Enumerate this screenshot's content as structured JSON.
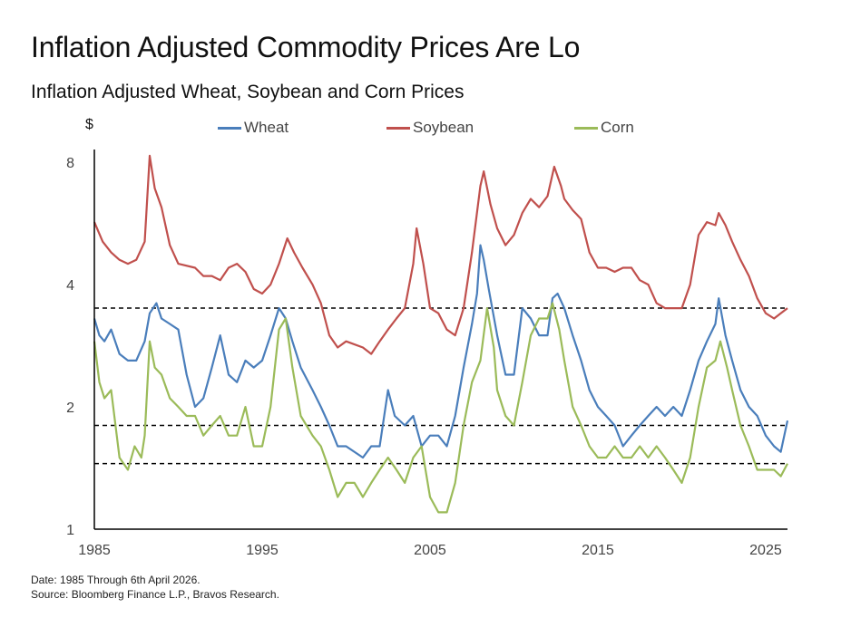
{
  "title": "Inflation Adjusted Commodity Prices Are Lo",
  "subtitle": "Inflation Adjusted Wheat, Soybean and Corn Prices",
  "y_unit": "$",
  "footnote": {
    "line1": "Date: 1985 Through 6th April 2026.",
    "line2": "Source: Bloomberg Finance L.P., Bravos Research."
  },
  "chart_data": {
    "type": "line",
    "title": "Inflation Adjusted Wheat, Soybean and Corn Prices",
    "xlabel": "",
    "ylabel": "$",
    "y_scale": "log",
    "ylim": [
      1,
      8.6
    ],
    "xlim": [
      1985.0,
      2026.3
    ],
    "x_ticks": [
      1985,
      1995,
      2005,
      2015,
      2025
    ],
    "x_tick_labels": [
      "1985",
      "1995",
      "2005",
      "2015",
      "2025"
    ],
    "y_ticks": [
      1,
      2,
      4,
      8
    ],
    "y_tick_labels": [
      "1",
      "2",
      "4",
      "8"
    ],
    "grid": false,
    "legend_position": "top",
    "reference_lines": [
      3.5,
      1.8,
      1.45
    ],
    "colors": {
      "Wheat": "#4a7ebb",
      "Soybean": "#c0504d",
      "Corn": "#9bbb59"
    },
    "series": [
      {
        "name": "Wheat",
        "x": [
          1985,
          1985.3,
          1985.6,
          1986,
          1986.5,
          1987,
          1987.5,
          1988,
          1988.3,
          1988.7,
          1989,
          1989.5,
          1990,
          1990.5,
          1991,
          1991.5,
          1992,
          1992.5,
          1993,
          1993.5,
          1994,
          1994.5,
          1995,
          1995.5,
          1996,
          1996.4,
          1996.8,
          1997.3,
          1998,
          1998.5,
          1999,
          1999.5,
          2000,
          2001,
          2001.5,
          2002,
          2002.5,
          2002.9,
          2003.5,
          2004,
          2004.5,
          2005,
          2005.5,
          2006,
          2006.5,
          2007,
          2007.5,
          2007.8,
          2008,
          2008.2,
          2008.5,
          2009,
          2009.5,
          2010,
          2010.5,
          2011,
          2011.5,
          2012,
          2012.3,
          2012.6,
          2013,
          2013.5,
          2014,
          2014.5,
          2015,
          2015.5,
          2016,
          2016.5,
          2017,
          2017.5,
          2018,
          2018.5,
          2019,
          2019.5,
          2020,
          2020.5,
          2021,
          2021.5,
          2022,
          2022.2,
          2022.6,
          2023,
          2023.5,
          2024,
          2024.5,
          2025,
          2025.5,
          2025.9,
          2026.3
        ],
        "y": [
          3.3,
          3.0,
          2.9,
          3.1,
          2.7,
          2.6,
          2.6,
          2.9,
          3.4,
          3.6,
          3.3,
          3.2,
          3.1,
          2.4,
          2.0,
          2.1,
          2.5,
          3.0,
          2.4,
          2.3,
          2.6,
          2.5,
          2.6,
          3.0,
          3.5,
          3.3,
          2.9,
          2.5,
          2.2,
          2.0,
          1.8,
          1.6,
          1.6,
          1.5,
          1.6,
          1.6,
          2.2,
          1.9,
          1.8,
          1.9,
          1.6,
          1.7,
          1.7,
          1.6,
          1.9,
          2.5,
          3.2,
          3.8,
          5.0,
          4.6,
          3.9,
          3.0,
          2.4,
          2.4,
          3.5,
          3.3,
          3.0,
          3.0,
          3.7,
          3.8,
          3.5,
          3.0,
          2.6,
          2.2,
          2.0,
          1.9,
          1.8,
          1.6,
          1.7,
          1.8,
          1.9,
          2.0,
          1.9,
          2.0,
          1.9,
          2.2,
          2.6,
          2.9,
          3.2,
          3.7,
          3.0,
          2.6,
          2.2,
          2.0,
          1.9,
          1.7,
          1.6,
          1.55,
          1.85
        ]
      },
      {
        "name": "Soybean",
        "x": [
          1985,
          1985.5,
          1986,
          1986.5,
          1987,
          1987.5,
          1988,
          1988.3,
          1988.6,
          1989,
          1989.5,
          1990,
          1991,
          1991.5,
          1992,
          1992.5,
          1993,
          1993.5,
          1994,
          1994.5,
          1995,
          1995.5,
          1996,
          1996.5,
          1996.9,
          1997.4,
          1998,
          1998.5,
          1999,
          1999.5,
          2000,
          2001,
          2001.5,
          2002,
          2002.5,
          2003,
          2003.5,
          2004,
          2004.2,
          2004.6,
          2005,
          2005.5,
          2006,
          2006.5,
          2007,
          2007.5,
          2008,
          2008.2,
          2008.6,
          2009,
          2009.5,
          2010,
          2010.5,
          2011,
          2011.5,
          2012,
          2012.4,
          2012.8,
          2013,
          2013.5,
          2014,
          2014.5,
          2015,
          2015.5,
          2016,
          2016.5,
          2017,
          2017.5,
          2018,
          2018.5,
          2019,
          2019.5,
          2020,
          2020.5,
          2021,
          2021.5,
          2022,
          2022.2,
          2022.6,
          2023,
          2023.5,
          2024,
          2024.5,
          2025,
          2025.5,
          2025.9,
          2026.3
        ],
        "y": [
          5.7,
          5.1,
          4.8,
          4.6,
          4.5,
          4.6,
          5.1,
          8.3,
          6.9,
          6.2,
          5.0,
          4.5,
          4.4,
          4.2,
          4.2,
          4.1,
          4.4,
          4.5,
          4.3,
          3.9,
          3.8,
          4.0,
          4.5,
          5.2,
          4.8,
          4.4,
          4.0,
          3.6,
          3.0,
          2.8,
          2.9,
          2.8,
          2.7,
          2.9,
          3.1,
          3.3,
          3.5,
          4.5,
          5.5,
          4.5,
          3.5,
          3.4,
          3.1,
          3.0,
          3.5,
          4.8,
          7.0,
          7.6,
          6.3,
          5.5,
          5.0,
          5.3,
          6.0,
          6.5,
          6.2,
          6.6,
          7.8,
          7.0,
          6.5,
          6.1,
          5.8,
          4.8,
          4.4,
          4.4,
          4.3,
          4.4,
          4.4,
          4.1,
          4.0,
          3.6,
          3.5,
          3.5,
          3.5,
          4.0,
          5.3,
          5.7,
          5.6,
          6.0,
          5.6,
          5.1,
          4.6,
          4.2,
          3.7,
          3.4,
          3.3,
          3.4,
          3.5
        ]
      },
      {
        "name": "Corn",
        "x": [
          1985,
          1985.3,
          1985.6,
          1986,
          1986.5,
          1987,
          1987.4,
          1987.8,
          1988,
          1988.3,
          1988.6,
          1989,
          1989.5,
          1990,
          1990.5,
          1991,
          1991.5,
          1992,
          1992.5,
          1993,
          1993.5,
          1994,
          1994.5,
          1995,
          1995.5,
          1996,
          1996.4,
          1996.8,
          1997.3,
          1998,
          1998.5,
          1999,
          1999.5,
          2000,
          2000.5,
          2001,
          2001.5,
          2002,
          2002.5,
          2003,
          2003.5,
          2004,
          2004.5,
          2005,
          2005.5,
          2006,
          2006.5,
          2007,
          2007.5,
          2008,
          2008.4,
          2008.8,
          2009,
          2009.5,
          2010,
          2010.5,
          2011,
          2011.5,
          2012,
          2012.3,
          2012.7,
          2013,
          2013.5,
          2014,
          2014.5,
          2015,
          2015.5,
          2016,
          2016.5,
          2017,
          2017.5,
          2018,
          2018.5,
          2019,
          2019.5,
          2020,
          2020.5,
          2021,
          2021.5,
          2022,
          2022.3,
          2022.7,
          2023,
          2023.5,
          2024,
          2024.5,
          2025,
          2025.5,
          2025.9,
          2026.3
        ],
        "y": [
          2.9,
          2.3,
          2.1,
          2.2,
          1.5,
          1.4,
          1.6,
          1.5,
          1.7,
          2.9,
          2.5,
          2.4,
          2.1,
          2.0,
          1.9,
          1.9,
          1.7,
          1.8,
          1.9,
          1.7,
          1.7,
          2.0,
          1.6,
          1.6,
          2.0,
          3.1,
          3.3,
          2.5,
          1.9,
          1.7,
          1.6,
          1.4,
          1.2,
          1.3,
          1.3,
          1.2,
          1.3,
          1.4,
          1.5,
          1.4,
          1.3,
          1.5,
          1.6,
          1.2,
          1.1,
          1.1,
          1.3,
          1.8,
          2.3,
          2.6,
          3.5,
          2.8,
          2.2,
          1.9,
          1.8,
          2.3,
          3.0,
          3.3,
          3.3,
          3.6,
          3.1,
          2.6,
          2.0,
          1.8,
          1.6,
          1.5,
          1.5,
          1.6,
          1.5,
          1.5,
          1.6,
          1.5,
          1.6,
          1.5,
          1.4,
          1.3,
          1.5,
          2.0,
          2.5,
          2.6,
          2.9,
          2.5,
          2.2,
          1.8,
          1.6,
          1.4,
          1.4,
          1.4,
          1.35,
          1.45
        ]
      }
    ]
  }
}
